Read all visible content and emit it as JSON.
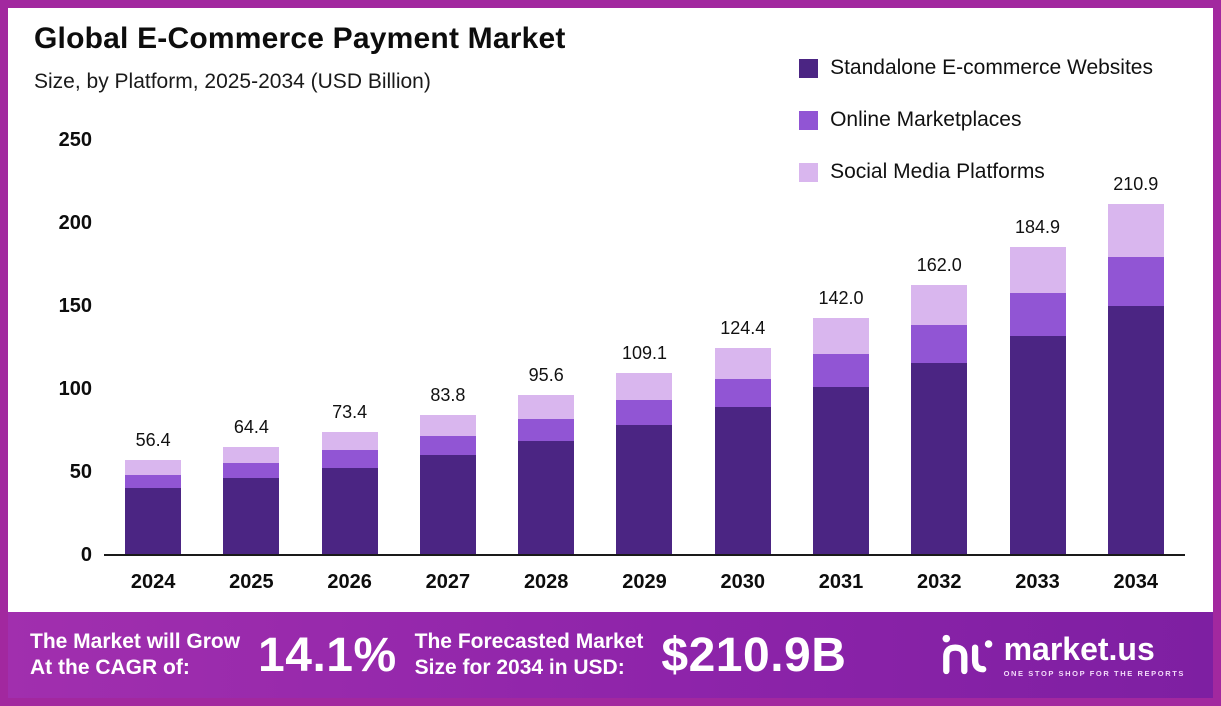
{
  "header": {
    "title": "Global E-Commerce Payment Market",
    "subtitle": "Size, by Platform, 2025-2034 (USD Billion)"
  },
  "banner": {
    "cagr_label": "The Market will Grow\nAt the CAGR of:",
    "cagr_value": "14.1%",
    "forecast_label": "The Forecasted Market\nSize for 2034 in USD:",
    "forecast_value": "$210.9B",
    "logo_text": "market.us",
    "logo_tagline": "ONE STOP SHOP FOR THE REPORTS"
  },
  "colors": {
    "frame": "#a2289f",
    "banner": "#8e24aa",
    "series_dark": "#4b2583",
    "series_medium": "#9155d4",
    "series_light": "#d9b6ee"
  },
  "chart_data": {
    "type": "bar",
    "stacked": true,
    "title": "Global E-Commerce Payment Market",
    "subtitle": "Size, by Platform, 2025-2034 (USD Billion)",
    "categories": [
      "2024",
      "2025",
      "2026",
      "2027",
      "2028",
      "2029",
      "2030",
      "2031",
      "2032",
      "2033",
      "2034"
    ],
    "totals": [
      "56.4",
      "64.4",
      "73.4",
      "83.8",
      "95.6",
      "109.1",
      "124.4",
      "142.0",
      "162.0",
      "184.9",
      "210.9"
    ],
    "series": [
      {
        "name": "Standalone E-commerce Websites",
        "color": "#4b2583",
        "values": [
          40.0,
          45.7,
          52.1,
          59.5,
          67.9,
          77.5,
          88.3,
          100.8,
          115.0,
          131.3,
          149.7
        ]
      },
      {
        "name": "Online Marketplaces",
        "color": "#9155d4",
        "values": [
          7.9,
          9.0,
          10.3,
          11.7,
          13.4,
          15.3,
          17.4,
          19.9,
          22.7,
          25.9,
          29.5
        ]
      },
      {
        "name": "Social Media Platforms",
        "color": "#d9b6ee",
        "values": [
          8.5,
          9.7,
          11.0,
          12.6,
          14.3,
          16.3,
          18.7,
          21.3,
          24.3,
          27.7,
          31.7
        ]
      }
    ],
    "xlabel": "",
    "ylabel": "USD Billion",
    "ylim": [
      0,
      250
    ],
    "yticks": [
      0,
      50,
      100,
      150,
      200,
      250
    ],
    "grid": false,
    "legend_position": "top-right"
  }
}
